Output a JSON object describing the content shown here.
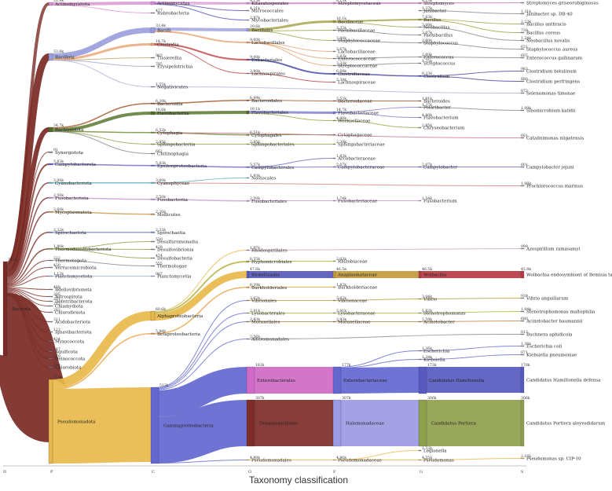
{
  "title": "Taxonomy classification",
  "ranks": [
    "D",
    "P",
    "C",
    "O",
    "F",
    "G",
    "S"
  ],
  "colors": {
    "bacteria": "#7a2a24",
    "pseudomonadota": "#e8b84a",
    "alphaproteobacteria": "#e8b84a",
    "gammaproteobacteria": "#6367cf",
    "bacillota": "#9b9fdc",
    "bacteroidota": "#4f6e22",
    "enterobacterales": "#cf6ac6",
    "oceanospirillales": "#7d2d28",
    "halomonadaceae": "#9c9ae2",
    "portiera": "#8fa04c",
    "hamiltonella": "#585ac0",
    "rickettsiales": "#5859b8",
    "anaplasmataceae": "#c29b3c",
    "wolbachia": "#b83c44"
  },
  "nodes": {
    "bacteria": {
      "label": "Bacteria",
      "value": "718k"
    },
    "actinomycetota": {
      "label": "Actinomycetota",
      "value": "21.9k"
    },
    "bacillota": {
      "label": "Bacillota",
      "value": "53.8k"
    },
    "bacteroidota": {
      "label": "Bacteroidota",
      "value": "34.7k"
    },
    "synergistota": {
      "label": "Synergistota",
      "value": "91"
    },
    "campylobacterota": {
      "label": "Campylobacterota",
      "value": "5.83k"
    },
    "cyanobacteriota": {
      "label": "Cyanobacteriota",
      "value": "3.00k"
    },
    "fusobacteriota": {
      "label": "Fusobacteriota",
      "value": "2.50k"
    },
    "mycoplasmatota": {
      "label": "Mycoplasmatota",
      "value": "3.60k"
    },
    "spirochaetota": {
      "label": "Spirochaetota",
      "value": "2.32k"
    },
    "thermodesulfobacteriota": {
      "label": "Thermodesulfobacteriota",
      "value": "1.80k"
    },
    "thermotogota": {
      "label": "Thermotogota",
      "value": "222"
    },
    "verrucomicrobiota": {
      "label": "Verrucomicrobiota",
      "value": "420"
    },
    "planctomycetota": {
      "label": "Planctomycetota",
      "value": "1.12k"
    },
    "bdellovibrionota": {
      "label": "Bdellovibrionota",
      "value": "488"
    },
    "nitrospirota": {
      "label": "Nitrospirota",
      "value": "205"
    },
    "deferribacterota": {
      "label": "Deferribacterota",
      "value": "251"
    },
    "chlamydiota": {
      "label": "Chlamydiota",
      "value": "233"
    },
    "chloroflexota": {
      "label": "Chloroflexota",
      "value": "293"
    },
    "acidobacteriota": {
      "label": "Acidobacteriota",
      "value": "311"
    },
    "ignavibacteriota": {
      "label": "Ignavibacteriota",
      "value": "123"
    },
    "myxococcota": {
      "label": "Myxococcota",
      "value": "434"
    },
    "aquificota": {
      "label": "Aquificota",
      "value": "247"
    },
    "deinococcota": {
      "label": "Deinococcota",
      "value": "179"
    },
    "chlorobiota": {
      "label": "Chlorobiota",
      "value": "218"
    },
    "pseudomonadota": {
      "label": "Pseudomonadota",
      "value": "579k"
    },
    "actinomycetes": {
      "label": "Actinomycetes",
      "value": ""
    },
    "rubrobacteria": {
      "label": "Rubrobacteria",
      "value": "477"
    },
    "bacilli": {
      "label": "Bacilli",
      "value": "33.4k"
    },
    "clostridia": {
      "label": "Clostridia",
      "value": "14.7k"
    },
    "tissierellia": {
      "label": "Tissierellia",
      "value": "983"
    },
    "erysipelotrichia": {
      "label": "Erysipelotrichia",
      "value": "795"
    },
    "negativicutes": {
      "label": "Negativicutes",
      "value": "1.55k"
    },
    "bacteroidia": {
      "label": "Bacteroidia",
      "value": "6.30k"
    },
    "flavobacteriia": {
      "label": "Flavobacteriia",
      "value": "18.6k"
    },
    "cytophagia": {
      "label": "Cytophagia",
      "value": "6.52k"
    },
    "sphingobacteriia": {
      "label": "Sphingobacteriia",
      "value": "2.45k"
    },
    "chitinophagia": {
      "label": "Chitinophagia",
      "value": "662"
    },
    "epsilonproteobacteria": {
      "label": "Epsilonproteobacteria",
      "value": "5.83k"
    },
    "cyanophyceae": {
      "label": "Cyanophyceae",
      "value": "3.00k"
    },
    "fusobacteriia": {
      "label": "Fusobacteriia",
      "value": "2.50k"
    },
    "mollicutes": {
      "label": "Mollicutes",
      "value": "2.26k"
    },
    "spirochaetia": {
      "label": "Spirochaetia",
      "value": "2.33k"
    },
    "desulfuromonadia": {
      "label": "Desulfuromonadia",
      "value": "530"
    },
    "desulfovibrionia": {
      "label": "Desulfovibrionia",
      "value": "428"
    },
    "desulfobacteria": {
      "label": "Desulfobacteria",
      "value": "474"
    },
    "thermotogae": {
      "label": "Thermotogae",
      "value": "555"
    },
    "planctomycetia": {
      "label": "Planctomycetia",
      "value": "987"
    },
    "alphaproteobacteria": {
      "label": "Alphaproteobacteria",
      "value": "60.6k"
    },
    "betaproteobacteria": {
      "label": "Betaproteobacteria",
      "value": "5.88k"
    },
    "gammaproteobacteria": {
      "label": "Gammaproteobacteria",
      "value": "513k"
    },
    "kitasatosporales": {
      "label": "Kitasatosporales",
      "value": "8.15k"
    },
    "micrococcales": {
      "label": "Micrococcales",
      "value": "4.21k"
    },
    "mycobacteriales": {
      "label": "Mycobacteriales",
      "value": "2.87k"
    },
    "bacillales": {
      "label": "Bacillales",
      "value": "20.6k"
    },
    "lactobacillales": {
      "label": "Lactobacillales",
      "value": "9.60k"
    },
    "eubacteriales": {
      "label": "Eubacteriales",
      "value": "9.00k"
    },
    "lachnospirales": {
      "label": "Lachnospirales",
      "value": "2.80k"
    },
    "bacteroidales": {
      "label": "Bacteroidales",
      "value": "6.99k"
    },
    "flavobacteriales": {
      "label": "Flavobacteriales",
      "value": "19.1k"
    },
    "cytophagales": {
      "label": "Cytophagales",
      "value": "6.51k"
    },
    "sphingobacteriales": {
      "label": "Sphingobacteriales",
      "value": "2.45k"
    },
    "campylobacterales": {
      "label": "Campylobacterales",
      "value": "5.57k"
    },
    "nostocales": {
      "label": "Nostocales",
      "value": "1.93k"
    },
    "fusobacteriales": {
      "label": "Fusobacteriales",
      "value": "2.50k"
    },
    "rhodospirillales": {
      "label": "Rhodospirillales",
      "value": "1.97k"
    },
    "hyphomicrobiales": {
      "label": "Hyphomicrobiales",
      "value": "8.55k"
    },
    "rickettsiales": {
      "label": "Rickettsiales",
      "value": "47.6k"
    },
    "burkholderiales": {
      "label": "Burkholderiales",
      "value": "6.39k"
    },
    "vibrionales": {
      "label": "Vibrionales",
      "value": "3.62k"
    },
    "lysobacterales": {
      "label": "Lysobacterales",
      "value": "2.81k"
    },
    "moraxellales": {
      "label": "Moraxellales",
      "value": "2.93k"
    },
    "alteromonadales": {
      "label": "Alteromonadales",
      "value": "3.56k"
    },
    "enterobacterales": {
      "label": "Enterobacterales",
      "value": "181k"
    },
    "oceanospirillales": {
      "label": "Oceanospirillales",
      "value": "307k"
    },
    "pseudomonadales": {
      "label": "Pseudomonadales",
      "value": "4.90k"
    },
    "streptomycetaceae": {
      "label": "Streptomycetaceae",
      "value": "8.13k"
    },
    "bacillaceae": {
      "label": "Bacillaceae",
      "value": "16.1k"
    },
    "paenibacillaceae": {
      "label": "Paenibacillaceae",
      "value": "3.32k"
    },
    "staphylococcaceae": {
      "label": "Staphylococcaceae",
      "value": "3.00k"
    },
    "lactobacillaceae": {
      "label": "Lactobacillaceae",
      "value": "3.67k"
    },
    "enterococcaceae": {
      "label": "Enterococcaceae",
      "value": "2.83k"
    },
    "streptococcaceae": {
      "label": "Streptococcaceae",
      "value": "3.33k"
    },
    "clostridiaceae": {
      "label": "Clostridiaceae",
      "value": "6.64k"
    },
    "lachnospiraceae": {
      "label": "Lachnospiraceae",
      "value": "2.38k"
    },
    "bacteroidaceae": {
      "label": "Bacteroidaceae",
      "value": "2.52k"
    },
    "flavobacteriaceae": {
      "label": "Flavobacteriaceae",
      "value": "14.7k"
    },
    "weeksellaceae": {
      "label": "Weeksellaceae",
      "value": "4.00k"
    },
    "cytophagaceae": {
      "label": "Cytophagaceae",
      "value": ""
    },
    "sphingobacteriaceae": {
      "label": "Sphingobacteriaceae",
      "value": "2.20k"
    },
    "arcobacteraceae": {
      "label": "Arcobacteraceae",
      "value": "1.83k"
    },
    "campylobacteraceae": {
      "label": "Campylobacteraceae",
      "value": "2.07k"
    },
    "fusobacteriaceae": {
      "label": "Fusobacteriaceae",
      "value": "1.74k"
    },
    "rhizobiaceae": {
      "label": "Rhizobiaceae",
      "value": "2.03k"
    },
    "anaplasmataceae": {
      "label": "Anaplasmataceae",
      "value": "46.5k"
    },
    "burkholderiaceae": {
      "label": "Burkholderiaceae",
      "value": "1.82k"
    },
    "vibrionaceae": {
      "label": "Vibrionaceae",
      "value": "3.62k"
    },
    "lysobacteraceae": {
      "label": "Lysobacteraceae",
      "value": "2.81k"
    },
    "moraxellaceae": {
      "label": "Moraxellaceae",
      "value": "2.93k"
    },
    "enterobacteriaceae": {
      "label": "Enterobacteriaceae",
      "value": "177k"
    },
    "halomonadaceae": {
      "label": "Halomonadaceae",
      "value": "307k"
    },
    "pseudomonadaceae": {
      "label": "Pseudomonadaceae",
      "value": "4.86k"
    },
    "g_streptomyces": {
      "label": "Streptomyces",
      "value": "8.13k"
    },
    "g_janibacter": {
      "label": "Janibacter",
      "value": "1.37k"
    },
    "g_bacillus": {
      "label": "Bacillus",
      "value": "7.63k"
    },
    "g_neobacillus": {
      "label": "Neobacillus",
      "value": "3.08k"
    },
    "g_paenibacillus": {
      "label": "Paenibacillus",
      "value": "3.07k"
    },
    "g_staphylococcus": {
      "label": "Staphylococcus",
      "value": "2.60k"
    },
    "g_enterococcus": {
      "label": "Enterococcus",
      "value": "2.60k"
    },
    "g_streptococcus": {
      "label": "Streptococcus",
      "value": "1.75k"
    },
    "g_clostridium": {
      "label": "Clostridium",
      "value": "6.23k"
    },
    "g_bacteroides": {
      "label": "Bacteroides",
      "value": "1.81k"
    },
    "g_polaribacter": {
      "label": "Polaribacter",
      "value": "1.37k"
    },
    "g_flavobacterium": {
      "label": "Flavobacterium",
      "value": "4.80k"
    },
    "g_chryseobacterium": {
      "label": "Chryseobacterium",
      "value": "2.85k"
    },
    "g_campylobacter": {
      "label": "Campylobacter",
      "value": "2.07k"
    },
    "g_fusobacterium": {
      "label": "Fusobacterium",
      "value": "1.54k"
    },
    "g_wolbachia": {
      "label": "Wolbachia",
      "value": "46.5k"
    },
    "g_vibrio": {
      "label": "Vibrio",
      "value": "3.04k"
    },
    "g_stenotrophomonas": {
      "label": "Stenotrophomonas",
      "value": "1.82k"
    },
    "g_acinetobacter": {
      "label": "Acinetobacter",
      "value": "2.59k"
    },
    "g_escherichia": {
      "label": "Escherichia",
      "value": "1.36k"
    },
    "g_klebsiella": {
      "label": "Klebsiella",
      "value": "1.24k"
    },
    "g_hamiltonella": {
      "label": "Candidatus Hamiltonella",
      "value": "173k"
    },
    "g_portiera": {
      "label": "Candidatus Portiera",
      "value": "306k"
    },
    "g_legionella": {
      "label": "Legionella",
      "value": "1.33k"
    },
    "g_pseudomonas": {
      "label": "Pseudomonas",
      "value": "4.55k"
    },
    "s_streptomyces": {
      "label": "Streptomyces griseorubiginosus",
      "value": ""
    },
    "s_janibacter": {
      "label": "Janibacter sp. DB-40",
      "value": "1.31k"
    },
    "s_anthracis": {
      "label": "Bacillus anthracis",
      "value": "2.23k"
    },
    "s_cereus": {
      "label": "Bacillus cereus",
      "value": "739"
    },
    "s_neobacillus": {
      "label": "Neobacillus novalis",
      "value": "1.24k"
    },
    "s_staph": {
      "label": "Staphylococcus aureus",
      "value": "631"
    },
    "s_enterococcus": {
      "label": "Enterococcus gallinarum",
      "value": "607"
    },
    "s_botulinum": {
      "label": "Clostridium botulinum",
      "value": "983"
    },
    "s_perfringens": {
      "label": "Clostridium perfringens",
      "value": "880"
    },
    "s_selenomonas": {
      "label": "Selenomonas timonae",
      "value": "873"
    },
    "s_sinomicrobium": {
      "label": "Sinomicrobium kalidii",
      "value": "1.09k"
    },
    "s_catalinimonas": {
      "label": "Catalinimonas niigatensis",
      "value": "681"
    },
    "s_campylobacter": {
      "label": "Campylobacter jejuni",
      "value": "601"
    },
    "s_prochlorococcus": {
      "label": "Prochlorococcus marinus",
      "value": "1.08k"
    },
    "s_azospirillum": {
      "label": "Azospirillum ramasamyi",
      "value": "999"
    },
    "s_wolbachia": {
      "label": "Wolbachia endosymbiont of Bemisia tabaci",
      "value": "45.8k"
    },
    "s_vibrio": {
      "label": "Vibrio anguillarum",
      "value": "939"
    },
    "s_stenotrophomonas": {
      "label": "Stenotrophomonas maltophilia",
      "value": "1.04k"
    },
    "s_acinetobacter": {
      "label": "Acinetobacter baumannii",
      "value": "680"
    },
    "s_buchnera": {
      "label": "Buchnera aphidicola",
      "value": "813"
    },
    "s_ecoli": {
      "label": "Escherichia coli",
      "value": "1.36k"
    },
    "s_klebsiella": {
      "label": "Klebsiella pneumoniae",
      "value": "871"
    },
    "s_hamiltonella": {
      "label": "Candidatus Hamiltonella defensa",
      "value": "170k"
    },
    "s_portiera": {
      "label": "Candidatus Portiera aleyrodidarum",
      "value": "306k"
    },
    "s_pseudomonas": {
      "label": "Pseudomonas sp. CIP-10",
      "value": "2.16k"
    }
  }
}
